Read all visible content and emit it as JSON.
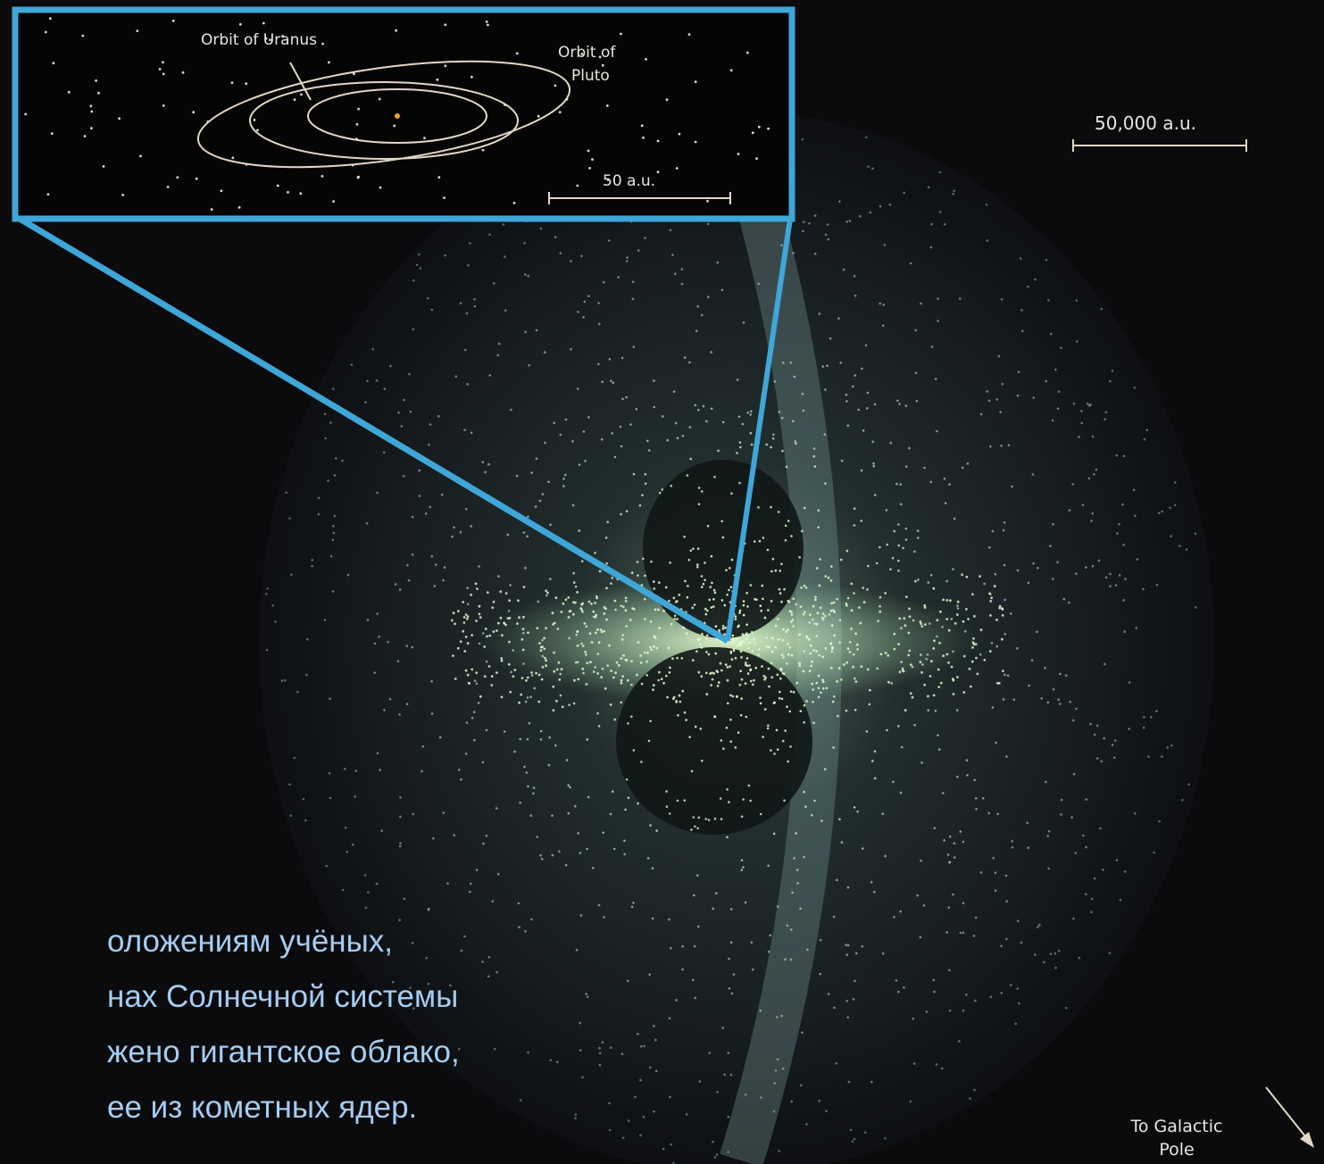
{
  "inset": {
    "uranus_label": "Orbit of Uranus",
    "pluto_label": [
      "Orbit of",
      "Pluto"
    ],
    "scale_label": "50 a.u."
  },
  "scale_label": "50,000 a.u.",
  "direction_label": [
    "To Galactic",
    "Pole"
  ],
  "caption": [
    "оложениям учёных,",
    "нах Солнечной системы",
    "жено гигантское облако,",
    "ее из кометных ядер."
  ]
}
